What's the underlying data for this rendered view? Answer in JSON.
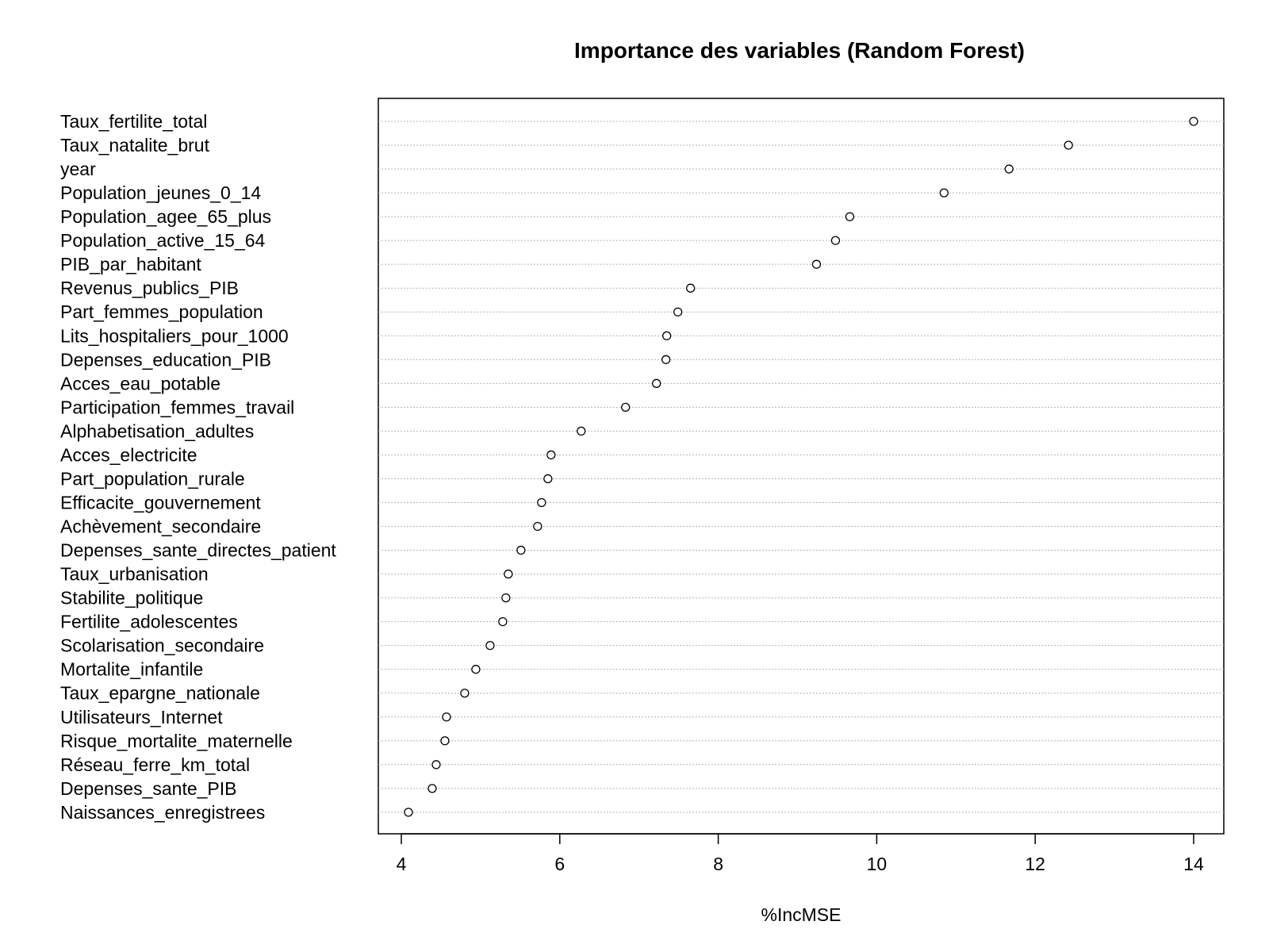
{
  "chart_data": {
    "type": "scatter",
    "title": "Importance des variables (Random Forest)",
    "xlabel": "%IncMSE",
    "ylabel": "",
    "xlim": [
      3.7,
      14.8
    ],
    "xticks": [
      "4",
      "6",
      "8",
      "10",
      "12",
      "14"
    ],
    "grid": "horizontal dotted",
    "marker": "open circle",
    "categories": [
      "Taux_fertilite_total",
      "Taux_natalite_brut",
      "year",
      "Population_jeunes_0_14",
      "Population_agee_65_plus",
      "Population_active_15_64",
      "PIB_par_habitant",
      "Revenus_publics_PIB",
      "Part_femmes_population",
      "Lits_hospitaliers_pour_1000",
      "Depenses_education_PIB",
      "Acces_eau_potable",
      "Participation_femmes_travail",
      "Alphabetisation_adultes",
      "Acces_electricite",
      "Part_population_rurale",
      "Efficacite_gouvernement",
      "Achèvement_secondaire",
      "Depenses_sante_directes_patient",
      "Taux_urbanisation",
      "Stabilite_politique",
      "Fertilite_adolescentes",
      "Scolarisation_secondaire",
      "Mortalite_infantile",
      "Taux_epargne_nationale",
      "Utilisateurs_Internet",
      "Risque_mortalite_maternelle",
      "Réseau_ferre_km_total",
      "Depenses_sante_PIB",
      "Naissances_enregistrees"
    ],
    "values": [
      14.0,
      12.42,
      11.67,
      10.85,
      9.66,
      9.48,
      9.24,
      7.65,
      7.49,
      7.35,
      7.34,
      7.22,
      6.83,
      6.27,
      5.89,
      5.85,
      5.77,
      5.72,
      5.51,
      5.35,
      5.32,
      5.28,
      5.12,
      4.94,
      4.8,
      4.57,
      4.55,
      4.44,
      4.39,
      4.09
    ]
  }
}
